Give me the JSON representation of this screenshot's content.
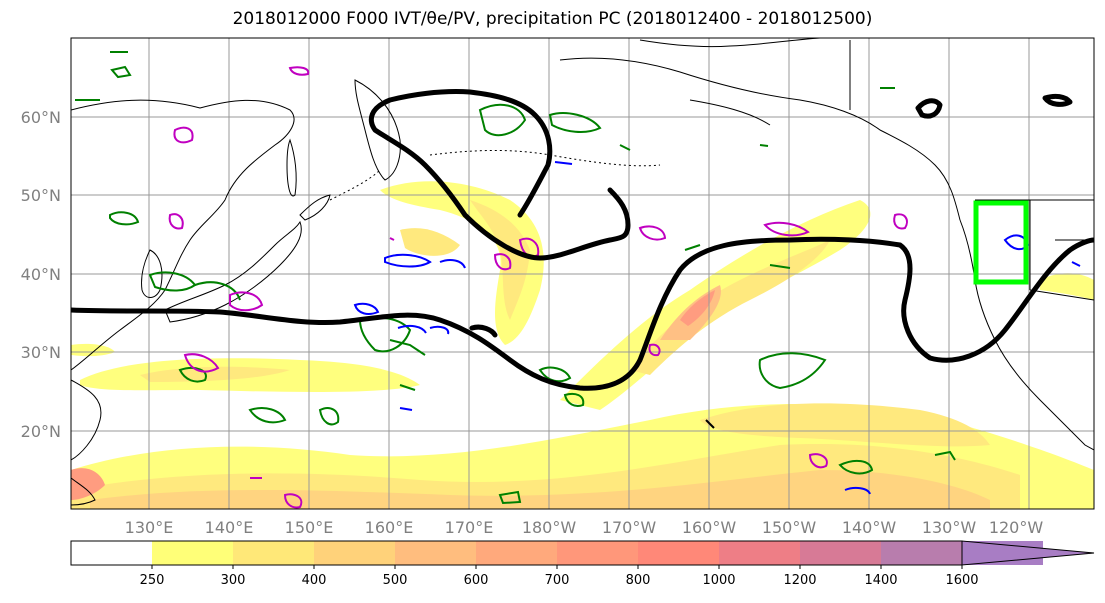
{
  "title": "2018012000 F000 IVT/θe/PV, precipitation PC (2018012400 - 2018012500)",
  "map": {
    "lat_labels": [
      "60°N",
      "50°N",
      "40°N",
      "30°N",
      "20°N"
    ],
    "lon_labels": [
      "130°E",
      "140°E",
      "150°E",
      "160°E",
      "170°E",
      "180°W",
      "170°W",
      "160°W",
      "150°W",
      "140°W",
      "130°W",
      "120°W"
    ],
    "grid": true,
    "highlight_box_color": "#00ff00"
  },
  "colorbar": {
    "levels": [
      "250",
      "300",
      "400",
      "500",
      "600",
      "700",
      "800",
      "1000",
      "1200",
      "1400",
      "1600"
    ],
    "colors": [
      "#ffffff",
      "#ffff78",
      "#ffe878",
      "#ffd27a",
      "#ffbd7e",
      "#ffa97c",
      "#ff977a",
      "#ff8878",
      "#ee7e86",
      "#d77a96",
      "#b87dad",
      "#a87dc4"
    ]
  },
  "contour_colors": {
    "theta_e": "#000000",
    "pv_positive": "#008000",
    "pv_negative": "#0000ff",
    "other": "#c000c0"
  }
}
